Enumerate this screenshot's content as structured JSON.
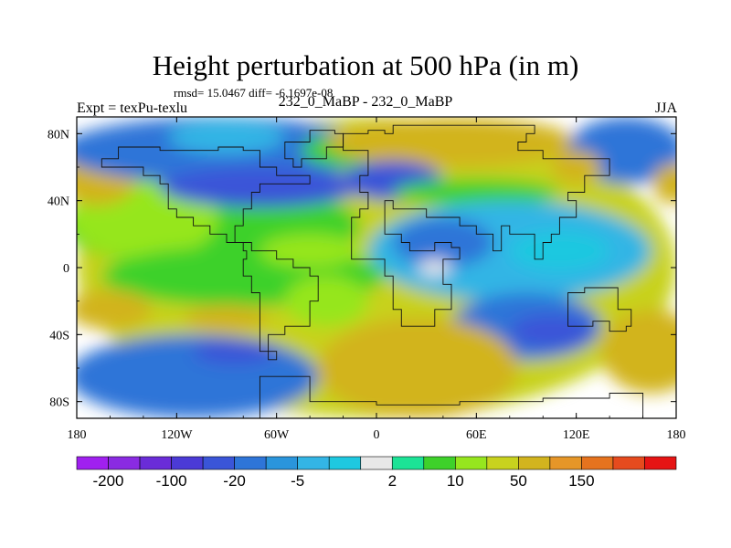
{
  "header": {
    "title": "Height perturbation at 500 hPa (in m)",
    "stats": "rmsd= 15.0467 diff= -6.1697e-08",
    "left_label": "Expt = texPu-texlu",
    "center_label": "232_0_MaBP - 232_0_MaBP",
    "right_label": "JJA"
  },
  "chart_data": {
    "type": "heatmap",
    "title": "Height perturbation at 500 hPa (in m)",
    "projection": "cylindrical equidistant",
    "xlim": [
      -180,
      180
    ],
    "ylim": [
      -90,
      90
    ],
    "x_ticks": [
      {
        "value": -180,
        "label": "180"
      },
      {
        "value": -120,
        "label": "120W"
      },
      {
        "value": -60,
        "label": "60W"
      },
      {
        "value": 0,
        "label": "0"
      },
      {
        "value": 60,
        "label": "60E"
      },
      {
        "value": 120,
        "label": "120E"
      },
      {
        "value": 180,
        "label": "180"
      }
    ],
    "y_ticks": [
      {
        "value": 80,
        "label": "80N"
      },
      {
        "value": 40,
        "label": "40N"
      },
      {
        "value": 0,
        "label": "0"
      },
      {
        "value": -40,
        "label": "40S"
      },
      {
        "value": -80,
        "label": "80S"
      }
    ],
    "colorbar": {
      "colors": [
        "#a020f0",
        "#8a2be2",
        "#6a2cd8",
        "#4b3ad6",
        "#3a55d8",
        "#2e75d8",
        "#2a95dc",
        "#33b5e5",
        "#1ec8e0",
        "#e8e8e8",
        "#1ce396",
        "#3ed12a",
        "#96e61e",
        "#c8d21e",
        "#d2b41e",
        "#e69628",
        "#e6731e",
        "#e64b1e",
        "#e61414"
      ],
      "labels": [
        {
          "text": "-200",
          "after_box": 1
        },
        {
          "text": "-100",
          "after_box": 3
        },
        {
          "text": "-20",
          "after_box": 5
        },
        {
          "text": "-5",
          "after_box": 7
        },
        {
          "text": "2",
          "after_box": 10
        },
        {
          "text": "10",
          "after_box": 12
        },
        {
          "text": "50",
          "after_box": 14
        },
        {
          "text": "150",
          "after_box": 16
        }
      ]
    },
    "field_colors": {
      "deep_blue": "#3a55d8",
      "blue": "#2e75d8",
      "mid_blue": "#2a95dc",
      "light_blue": "#33b5e5",
      "cyan": "#1ec8e0",
      "neutral": "#e8e8e8",
      "teal": "#1ce396",
      "green": "#3ed12a",
      "lime": "#96e61e",
      "olive": "#c8d21e",
      "ochre": "#d2b41e"
    },
    "field_blobs": [
      {
        "lon": 0,
        "lat": 0,
        "rlon": 180,
        "rlat": 90,
        "color": "olive"
      },
      {
        "lon": -100,
        "lat": 25,
        "rlon": 90,
        "rlat": 25,
        "color": "green"
      },
      {
        "lon": -140,
        "lat": 30,
        "rlon": 45,
        "rlat": 25,
        "color": "lime"
      },
      {
        "lon": -168,
        "lat": 55,
        "rlon": 25,
        "rlat": 18,
        "color": "ochre"
      },
      {
        "lon": -95,
        "lat": 70,
        "rlon": 95,
        "rlat": 20,
        "color": "blue"
      },
      {
        "lon": -90,
        "lat": 78,
        "rlon": 35,
        "rlat": 10,
        "color": "light_blue"
      },
      {
        "lon": -70,
        "lat": 48,
        "rlon": 60,
        "rlat": 12,
        "color": "deep_blue"
      },
      {
        "lon": -20,
        "lat": 70,
        "rlon": 25,
        "rlat": 10,
        "color": "green"
      },
      {
        "lon": 45,
        "lat": 75,
        "rlon": 75,
        "rlat": 15,
        "color": "ochre"
      },
      {
        "lon": 10,
        "lat": 52,
        "rlon": 30,
        "rlat": 12,
        "color": "deep_blue"
      },
      {
        "lon": 60,
        "lat": 45,
        "rlon": 50,
        "rlat": 8,
        "color": "green"
      },
      {
        "lon": 150,
        "lat": 70,
        "rlon": 35,
        "rlat": 20,
        "color": "blue"
      },
      {
        "lon": 120,
        "lat": 60,
        "rlon": 15,
        "rlat": 10,
        "color": "ochre"
      },
      {
        "lon": 178,
        "lat": 50,
        "rlon": 12,
        "rlat": 12,
        "color": "ochre"
      },
      {
        "lon": 80,
        "lat": 10,
        "rlon": 85,
        "rlat": 30,
        "color": "light_blue"
      },
      {
        "lon": 40,
        "lat": 15,
        "rlon": 30,
        "rlat": 15,
        "color": "blue"
      },
      {
        "lon": 110,
        "lat": 10,
        "rlon": 30,
        "rlat": 12,
        "color": "cyan"
      },
      {
        "lon": 35,
        "lat": 0,
        "rlon": 10,
        "rlat": 5,
        "color": "neutral"
      },
      {
        "lon": 90,
        "lat": -35,
        "rlon": 45,
        "rlat": 20,
        "color": "blue"
      },
      {
        "lon": 105,
        "lat": -38,
        "rlon": 25,
        "rlat": 10,
        "color": "deep_blue"
      },
      {
        "lon": 165,
        "lat": -50,
        "rlon": 30,
        "rlat": 25,
        "color": "ochre"
      },
      {
        "lon": 25,
        "lat": -60,
        "rlon": 60,
        "rlat": 30,
        "color": "ochre"
      },
      {
        "lon": -110,
        "lat": -65,
        "rlon": 75,
        "rlat": 25,
        "color": "blue"
      },
      {
        "lon": -85,
        "lat": -50,
        "rlon": 25,
        "rlat": 8,
        "color": "deep_blue"
      },
      {
        "lon": -80,
        "lat": -5,
        "rlon": 85,
        "rlat": 18,
        "color": "green"
      },
      {
        "lon": -160,
        "lat": -25,
        "rlon": 25,
        "rlat": 12,
        "color": "ochre"
      },
      {
        "lon": -90,
        "lat": -30,
        "rlon": 25,
        "rlat": 8,
        "color": "ochre"
      },
      {
        "lon": -30,
        "lat": -20,
        "rlon": 25,
        "rlat": 15,
        "color": "lime"
      },
      {
        "lon": -40,
        "lat": 10,
        "rlon": 30,
        "rlat": 10,
        "color": "lime"
      }
    ]
  }
}
